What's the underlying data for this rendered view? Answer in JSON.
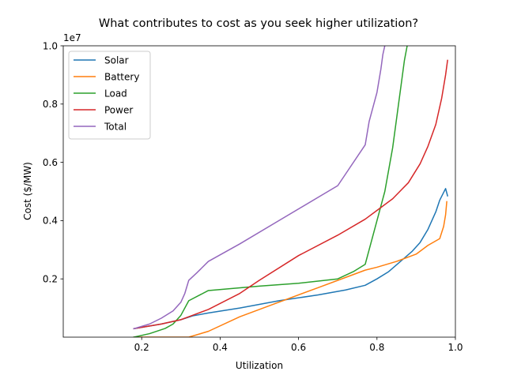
{
  "chart_data": {
    "type": "line",
    "title": "What contributes to cost as you seek higher utilization?",
    "xlabel": "Utilization",
    "ylabel": "Cost ($/MW)",
    "y_offset_text": "1e7",
    "xlim": [
      0.0,
      1.0
    ],
    "ylim": [
      0.0,
      10000000
    ],
    "xticks": [
      0.2,
      0.4,
      0.6,
      0.8,
      1.0
    ],
    "xtick_labels": [
      "0.2",
      "0.4",
      "0.6",
      "0.8",
      "1.0"
    ],
    "yticks": [
      2000000,
      4000000,
      6000000,
      8000000,
      10000000
    ],
    "ytick_labels": [
      "0.2",
      "0.4",
      "0.6",
      "0.8",
      "1.0"
    ],
    "grid": false,
    "legend_position": "upper-left",
    "series": [
      {
        "name": "Solar",
        "color": "#1f77b4",
        "points": [
          [
            0.18,
            290000
          ],
          [
            0.25,
            450000
          ],
          [
            0.3,
            600000
          ],
          [
            0.33,
            730000
          ],
          [
            0.37,
            830000
          ],
          [
            0.45,
            1000000
          ],
          [
            0.55,
            1250000
          ],
          [
            0.65,
            1450000
          ],
          [
            0.72,
            1620000
          ],
          [
            0.77,
            1780000
          ],
          [
            0.8,
            2000000
          ],
          [
            0.83,
            2250000
          ],
          [
            0.86,
            2600000
          ],
          [
            0.89,
            2950000
          ],
          [
            0.91,
            3250000
          ],
          [
            0.93,
            3700000
          ],
          [
            0.95,
            4300000
          ],
          [
            0.96,
            4700000
          ],
          [
            0.975,
            5100000
          ],
          [
            0.98,
            4850000
          ]
        ]
      },
      {
        "name": "Battery",
        "color": "#ff7f0e",
        "points": [
          [
            0.18,
            0
          ],
          [
            0.32,
            0
          ],
          [
            0.37,
            200000
          ],
          [
            0.45,
            700000
          ],
          [
            0.55,
            1200000
          ],
          [
            0.65,
            1700000
          ],
          [
            0.72,
            2050000
          ],
          [
            0.77,
            2300000
          ],
          [
            0.8,
            2400000
          ],
          [
            0.85,
            2600000
          ],
          [
            0.9,
            2850000
          ],
          [
            0.93,
            3150000
          ],
          [
            0.96,
            3380000
          ],
          [
            0.97,
            3800000
          ],
          [
            0.975,
            4200000
          ],
          [
            0.978,
            4650000
          ]
        ]
      },
      {
        "name": "Load",
        "color": "#2ca02c",
        "points": [
          [
            0.18,
            0
          ],
          [
            0.22,
            120000
          ],
          [
            0.26,
            300000
          ],
          [
            0.28,
            450000
          ],
          [
            0.3,
            750000
          ],
          [
            0.32,
            1250000
          ],
          [
            0.37,
            1600000
          ],
          [
            0.5,
            1750000
          ],
          [
            0.6,
            1850000
          ],
          [
            0.7,
            2000000
          ],
          [
            0.74,
            2250000
          ],
          [
            0.77,
            2500000
          ],
          [
            0.78,
            3000000
          ],
          [
            0.8,
            4000000
          ],
          [
            0.82,
            5000000
          ],
          [
            0.84,
            6500000
          ],
          [
            0.86,
            8500000
          ],
          [
            0.87,
            9500000
          ],
          [
            0.877,
            10000000
          ]
        ]
      },
      {
        "name": "Power",
        "color": "#d62728",
        "points": [
          [
            0.18,
            290000
          ],
          [
            0.25,
            450000
          ],
          [
            0.3,
            600000
          ],
          [
            0.33,
            750000
          ],
          [
            0.37,
            950000
          ],
          [
            0.45,
            1500000
          ],
          [
            0.5,
            1950000
          ],
          [
            0.6,
            2800000
          ],
          [
            0.7,
            3500000
          ],
          [
            0.77,
            4050000
          ],
          [
            0.8,
            4350000
          ],
          [
            0.84,
            4750000
          ],
          [
            0.88,
            5300000
          ],
          [
            0.91,
            5950000
          ],
          [
            0.93,
            6550000
          ],
          [
            0.95,
            7300000
          ],
          [
            0.965,
            8200000
          ],
          [
            0.975,
            9000000
          ],
          [
            0.98,
            9500000
          ]
        ]
      },
      {
        "name": "Total",
        "color": "#9467bd",
        "points": [
          [
            0.18,
            290000
          ],
          [
            0.22,
            450000
          ],
          [
            0.25,
            650000
          ],
          [
            0.28,
            900000
          ],
          [
            0.3,
            1200000
          ],
          [
            0.31,
            1500000
          ],
          [
            0.32,
            1950000
          ],
          [
            0.34,
            2200000
          ],
          [
            0.37,
            2600000
          ],
          [
            0.45,
            3200000
          ],
          [
            0.55,
            4000000
          ],
          [
            0.65,
            4800000
          ],
          [
            0.7,
            5200000
          ],
          [
            0.72,
            5600000
          ],
          [
            0.77,
            6600000
          ],
          [
            0.78,
            7400000
          ],
          [
            0.8,
            8400000
          ],
          [
            0.81,
            9200000
          ],
          [
            0.815,
            9700000
          ],
          [
            0.82,
            10000000
          ]
        ]
      }
    ]
  }
}
